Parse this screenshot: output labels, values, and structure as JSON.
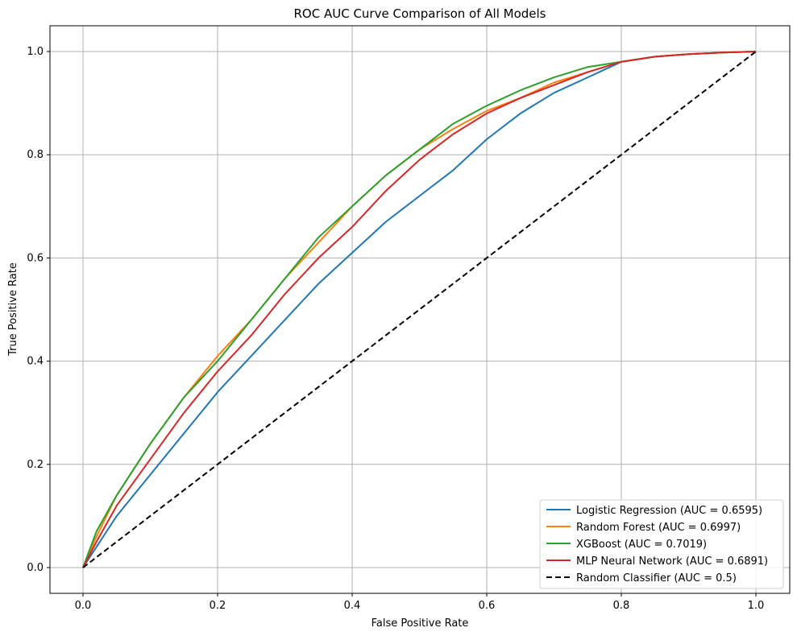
{
  "chart_data": {
    "type": "line",
    "title": "ROC AUC Curve Comparison of All Models",
    "xlabel": "False Positive Rate",
    "ylabel": "True Positive Rate",
    "xlim": [
      -0.05,
      1.05
    ],
    "ylim": [
      -0.05,
      1.05
    ],
    "xticks": [
      "0.0",
      "0.2",
      "0.4",
      "0.6",
      "0.8",
      "1.0"
    ],
    "yticks": [
      "0.0",
      "0.2",
      "0.4",
      "0.6",
      "0.8",
      "1.0"
    ],
    "grid": true,
    "legend_position": "lower right",
    "series": [
      {
        "name": "Logistic Regression (AUC = 0.6595)",
        "color": "#1f77b4",
        "style": "solid",
        "x": [
          0,
          0.02,
          0.05,
          0.1,
          0.15,
          0.2,
          0.25,
          0.3,
          0.35,
          0.4,
          0.45,
          0.5,
          0.55,
          0.6,
          0.65,
          0.7,
          0.75,
          0.8,
          0.85,
          0.9,
          0.95,
          1.0
        ],
        "y": [
          0,
          0.04,
          0.1,
          0.18,
          0.26,
          0.34,
          0.41,
          0.48,
          0.55,
          0.61,
          0.67,
          0.72,
          0.77,
          0.83,
          0.88,
          0.92,
          0.95,
          0.98,
          0.99,
          0.995,
          0.998,
          1.0
        ]
      },
      {
        "name": "Random Forest (AUC = 0.6997)",
        "color": "#ff7f0e",
        "style": "solid",
        "x": [
          0,
          0.02,
          0.05,
          0.1,
          0.15,
          0.2,
          0.25,
          0.3,
          0.35,
          0.4,
          0.45,
          0.5,
          0.55,
          0.6,
          0.65,
          0.7,
          0.75,
          0.8,
          0.85,
          0.9,
          0.95,
          1.0
        ],
        "y": [
          0,
          0.06,
          0.14,
          0.24,
          0.33,
          0.41,
          0.48,
          0.56,
          0.63,
          0.7,
          0.76,
          0.81,
          0.85,
          0.885,
          0.91,
          0.94,
          0.96,
          0.98,
          0.99,
          0.995,
          0.998,
          1.0
        ]
      },
      {
        "name": "XGBoost (AUC = 0.7019)",
        "color": "#2ca02c",
        "style": "solid",
        "x": [
          0,
          0.02,
          0.05,
          0.1,
          0.15,
          0.2,
          0.25,
          0.3,
          0.35,
          0.4,
          0.45,
          0.5,
          0.55,
          0.6,
          0.65,
          0.7,
          0.75,
          0.8,
          0.85,
          0.9,
          0.95,
          1.0
        ],
        "y": [
          0,
          0.07,
          0.14,
          0.24,
          0.33,
          0.4,
          0.48,
          0.56,
          0.64,
          0.7,
          0.76,
          0.81,
          0.86,
          0.895,
          0.925,
          0.95,
          0.97,
          0.98,
          0.99,
          0.995,
          0.998,
          1.0
        ]
      },
      {
        "name": "MLP Neural Network (AUC = 0.6891)",
        "color": "#d62728",
        "style": "solid",
        "x": [
          0,
          0.02,
          0.05,
          0.1,
          0.15,
          0.2,
          0.25,
          0.3,
          0.35,
          0.4,
          0.45,
          0.5,
          0.55,
          0.6,
          0.65,
          0.7,
          0.75,
          0.8,
          0.85,
          0.9,
          0.95,
          1.0
        ],
        "y": [
          0,
          0.05,
          0.12,
          0.21,
          0.3,
          0.38,
          0.45,
          0.53,
          0.6,
          0.66,
          0.73,
          0.79,
          0.84,
          0.88,
          0.91,
          0.935,
          0.96,
          0.98,
          0.99,
          0.995,
          0.998,
          1.0
        ]
      },
      {
        "name": "Random Classifier (AUC = 0.5)",
        "color": "#000000",
        "style": "dashed",
        "x": [
          0,
          1
        ],
        "y": [
          0,
          1
        ]
      }
    ]
  }
}
